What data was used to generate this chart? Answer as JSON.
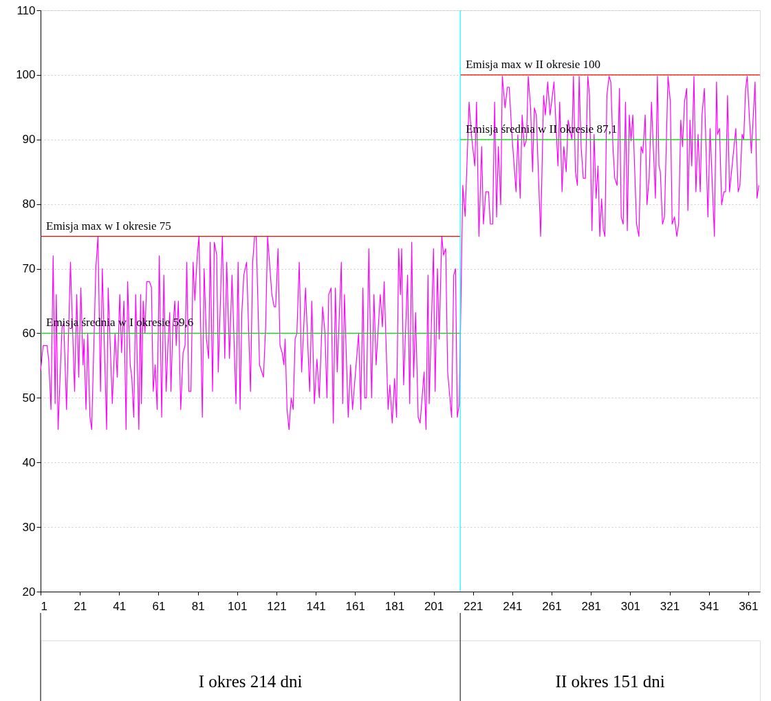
{
  "chart_data": {
    "type": "line",
    "xlim": [
      1,
      367
    ],
    "xticks": [
      1,
      21,
      41,
      61,
      81,
      101,
      121,
      141,
      161,
      181,
      201,
      221,
      241,
      261,
      281,
      301,
      321,
      341,
      361
    ],
    "ylim": [
      20,
      110
    ],
    "yticks": [
      20,
      30,
      40,
      50,
      60,
      70,
      80,
      90,
      100,
      110
    ],
    "grid": "y",
    "legend": false,
    "marker": "none",
    "series": [
      {
        "color": "#ff00ff",
        "x": [
          1,
          2.3,
          4.3,
          5.1,
          6.3,
          7.4,
          8.4,
          9,
          9.9,
          11.9,
          12.8,
          14.2,
          16.2,
          18.3,
          19.4,
          20.4,
          21.5,
          22.6,
          23.1,
          24.1,
          25,
          26.1,
          27,
          29.1,
          30.2,
          31.5,
          32.4,
          34.6,
          35.4,
          37.5,
          38.9,
          40,
          41.3,
          42.2,
          43.4,
          44.5,
          45.3,
          46.6,
          47.4,
          48.4,
          49.4,
          51,
          51.9,
          52.3,
          53.2,
          54.1,
          55,
          56.4,
          57.4,
          58.3,
          59.3,
          60.3,
          61.4,
          62.6,
          63.7,
          64.9,
          65.8,
          66.7,
          67.3,
          68.3,
          69.3,
          70,
          71.1,
          72.3,
          73.5,
          74.5,
          75.4,
          76.4,
          77.5,
          78.6,
          79.5,
          80.7,
          81.6,
          83.3,
          84.2,
          85.4,
          86.5,
          87.3,
          88.5,
          89.4,
          90.6,
          91.4,
          93.5,
          94.7,
          95.7,
          97.1,
          98.4,
          100.4,
          101.5,
          102.5,
          103.4,
          104.4,
          105.8,
          107.8,
          108.9,
          109.9,
          110.7,
          112.4,
          114.4,
          115.5,
          116.5,
          117.7,
          118.6,
          119.8,
          120.6,
          121.8,
          122.8,
          123.9,
          124.8,
          125.4,
          126.4,
          127.4,
          128.5,
          129.5,
          130.5,
          131.4,
          132.6,
          133.8,
          135.8,
          137.9,
          139,
          140.3,
          141.6,
          142.8,
          144.5,
          145.7,
          146.7,
          147.6,
          148.8,
          149.9,
          151,
          151.9,
          154,
          154.7,
          155.6,
          157.5,
          158.7,
          159.7,
          162.8,
          163.9,
          165,
          165.9,
          166.8,
          168,
          169.4,
          170.6,
          171.7,
          173.8,
          174.9,
          175.8,
          177.8,
          178.7,
          179.9,
          181.1,
          182.1,
          183.2,
          184.1,
          184.7,
          185.7,
          187.7,
          188.8,
          189.8,
          190.8,
          191.8,
          193.1,
          194.1,
          196.1,
          197.1,
          198.1,
          198.7,
          200.9,
          201.7,
          202.9,
          203.8,
          205.1,
          206,
          207.1,
          208.1,
          210.1,
          211.2,
          212.1,
          213,
          214,
          215.8,
          217,
          219,
          220.2,
          221.9,
          222.8,
          224,
          225.4,
          226.3,
          227.5,
          228.9,
          229.8,
          231,
          232,
          233,
          233.9,
          235.1,
          235.9,
          237.3,
          238.5,
          239.4,
          240.8,
          242.9,
          243.8,
          245,
          246,
          247.1,
          248.2,
          249.1,
          250.3,
          251.3,
          252.2,
          253.2,
          255.4,
          256.9,
          257.8,
          259,
          260.2,
          262.2,
          264.2,
          265.1,
          266.3,
          267.2,
          268.4,
          269.4,
          271.3,
          272.1,
          273.1,
          274.1,
          275,
          276,
          277.1,
          278.2,
          279.4,
          280.3,
          281.5,
          282.6,
          283.6,
          284.6,
          285.5,
          286.4,
          287.3,
          288.1,
          289.1,
          290.2,
          291.1,
          292.2,
          293.1,
          294.3,
          295.5,
          296.4,
          297.4,
          298.6,
          299.5,
          300.5,
          301.4,
          302.3,
          304.2,
          305.4,
          306.5,
          307.4,
          308.6,
          309.5,
          310.6,
          311.8,
          313.8,
          314.8,
          315.6,
          316.3,
          317.4,
          318.4,
          320.2,
          321.4,
          322.3,
          323.5,
          324.7,
          325.6,
          326.7,
          327.6,
          328.6,
          329.7,
          330.3,
          331.4,
          332.3,
          333.4,
          334.4,
          335.5,
          336.6,
          337.5,
          338.7,
          340.5,
          341.6,
          343.8,
          344.9,
          345.4,
          346.4,
          347.5,
          348.6,
          349.5,
          350.5,
          351.5,
          354.7,
          355.9,
          356.8,
          357.9,
          358.7,
          359.7,
          360.5,
          362.6,
          364.5,
          365.5,
          366.4
        ],
        "values": [
          54.2,
          58.1,
          58.1,
          56,
          48.2,
          72,
          49.1,
          66,
          45.1,
          60.9,
          61.6,
          48.2,
          71,
          51,
          66,
          53.2,
          67,
          55.1,
          59.1,
          48.2,
          60,
          47.1,
          45.1,
          70,
          75,
          51,
          70,
          45.1,
          67,
          49.1,
          60,
          53.2,
          66,
          57,
          65,
          45.1,
          68,
          55.1,
          53.2,
          47,
          66,
          45.1,
          66,
          49.1,
          65,
          60,
          68,
          68,
          67.1,
          51,
          55.1,
          48.2,
          72,
          47,
          69,
          51,
          58.2,
          63.2,
          51,
          61,
          65,
          58.1,
          65,
          48.2,
          57,
          58.1,
          71,
          51,
          51,
          71,
          65.1,
          72.1,
          75,
          47,
          70,
          59.1,
          56.1,
          74.1,
          51,
          74.1,
          72.1,
          54,
          75,
          56.1,
          71,
          56.1,
          69,
          49.1,
          71,
          48.2,
          63.2,
          69,
          71,
          51,
          71,
          75,
          75,
          55.1,
          53.2,
          61,
          75,
          70,
          66.2,
          64.1,
          64.1,
          73.1,
          58.1,
          57,
          55.1,
          59.1,
          48.2,
          45.1,
          50,
          48.2,
          59.1,
          60,
          71,
          54,
          67,
          51,
          65,
          49.1,
          56,
          50,
          64.1,
          60,
          50,
          66,
          67,
          46.1,
          67,
          54,
          71,
          49.1,
          66,
          47,
          55.1,
          48.2,
          60,
          48.2,
          67,
          50,
          50,
          73.1,
          50,
          66,
          55.1,
          66,
          61,
          68,
          48.2,
          52,
          46.1,
          53,
          47,
          73.1,
          66,
          73.1,
          52,
          69,
          49.1,
          74.1,
          53.2,
          63.2,
          47,
          46.1,
          54,
          45.1,
          69,
          49.1,
          73.1,
          51,
          70,
          59.1,
          75,
          72.1,
          73.1,
          54,
          47,
          69,
          70,
          47,
          49,
          82.9,
          78.1,
          95.8,
          90.7,
          85.9,
          95.8,
          75,
          88.9,
          76.9,
          81.9,
          81.9,
          76.9,
          76.9,
          95.8,
          78,
          88.9,
          79.9,
          99.8,
          94.9,
          98.1,
          98.1,
          90.7,
          81.9,
          90.7,
          80.9,
          93.8,
          88.9,
          90,
          99.8,
          94.9,
          85,
          94.9,
          93.8,
          75,
          96.8,
          93.8,
          98.9,
          93.8,
          98.9,
          85.9,
          95.8,
          81.9,
          88.9,
          85,
          93,
          90,
          99.8,
          85,
          82.9,
          99.8,
          88.9,
          84,
          84,
          99.8,
          96.8,
          75.9,
          90.8,
          80.9,
          85.9,
          75,
          80.8,
          76.1,
          75,
          96.8,
          99.8,
          98.9,
          88.9,
          84,
          82.9,
          97.9,
          78,
          76.9,
          95.8,
          75.9,
          93.8,
          89.8,
          93.8,
          76.9,
          75,
          88.9,
          87.9,
          93.8,
          79.9,
          84,
          95.8,
          80.9,
          99.8,
          85.9,
          85,
          76.9,
          78,
          99.8,
          95.8,
          76.9,
          78,
          75,
          76.9,
          93,
          88.9,
          95.8,
          97.9,
          79,
          93,
          85.9,
          99.8,
          81.9,
          90.8,
          81.9,
          93.8,
          97.9,
          78,
          91.7,
          75,
          98.9,
          90.8,
          91.7,
          79.9,
          81.9,
          81.9,
          96.8,
          81.9,
          91.7,
          81.9,
          82.9,
          90.8,
          90,
          97.9,
          99.8,
          87.9,
          98.9,
          80.9,
          82.9
        ]
      },
      {
        "name": "Emisja max  w I okresie 75",
        "color": "#ff0000",
        "x": [
          1,
          214.5
        ],
        "values": [
          75,
          75
        ]
      },
      {
        "name": "Emisja średnia w I okresie 59,6",
        "color": "#00dd00",
        "x": [
          1,
          214.5
        ],
        "values": [
          60,
          60
        ]
      },
      {
        "name": "Emisja max w II okresie 100",
        "color": "#ff0000",
        "x": [
          214.5,
          367
        ],
        "values": [
          100,
          100
        ]
      },
      {
        "name": "Emisja średnia w II okresie 87,1",
        "color": "#00dd00",
        "x": [
          214.5,
          367
        ],
        "values": [
          90,
          90
        ]
      }
    ],
    "ref_lines": [
      {
        "axis": "x",
        "value": 214.5,
        "color": "#00ffff"
      }
    ],
    "annotations": [
      "I okres 214 dni",
      "II okres 151 dni"
    ]
  }
}
